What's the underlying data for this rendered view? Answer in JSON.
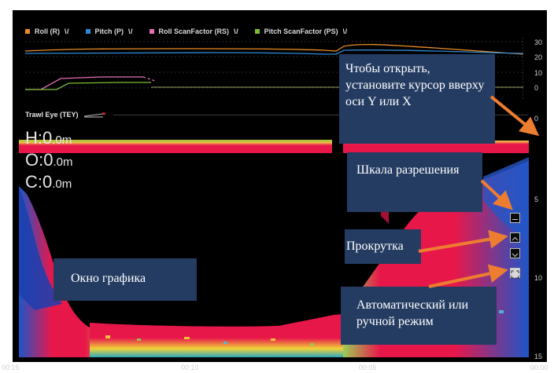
{
  "legend": [
    {
      "label": "Roll (R)",
      "color": "#e98a24"
    },
    {
      "label": "Pitch (P)",
      "color": "#2e8ad6"
    },
    {
      "label": "Roll ScanFactor (RS)",
      "color": "#e36fb4"
    },
    {
      "label": "Pitch ScanFactor (PS)",
      "color": "#7dbd34"
    }
  ],
  "legend_glyph": "\\ /",
  "top_axis": [
    "30",
    "20",
    "10",
    "0"
  ],
  "trawl_eye": {
    "title": "Trawl Eye (TEY)",
    "axis_top": "0"
  },
  "readouts": {
    "h": {
      "label": "H:0",
      "unit": ".0m"
    },
    "o": {
      "label": "O:0",
      "unit": ".0m"
    },
    "c": {
      "label": "C:0",
      "unit": ".0m"
    }
  },
  "depth_axis": [
    "5",
    "10",
    "15"
  ],
  "x_axis": [
    "00:15",
    "00:10",
    "00:05",
    "00:00"
  ],
  "annotations": {
    "open": "Чтобы открыть, установите курсор вверху оси Y или X",
    "scale": "Шкала разрешения",
    "scroll": "Прокрутка",
    "window": "Окно графика",
    "mode": "Автоматический или ручной режим"
  },
  "colors": {
    "annotation_bg": "#253c62",
    "arrow": "#ed7d31",
    "echo_red": "#e8174a"
  }
}
